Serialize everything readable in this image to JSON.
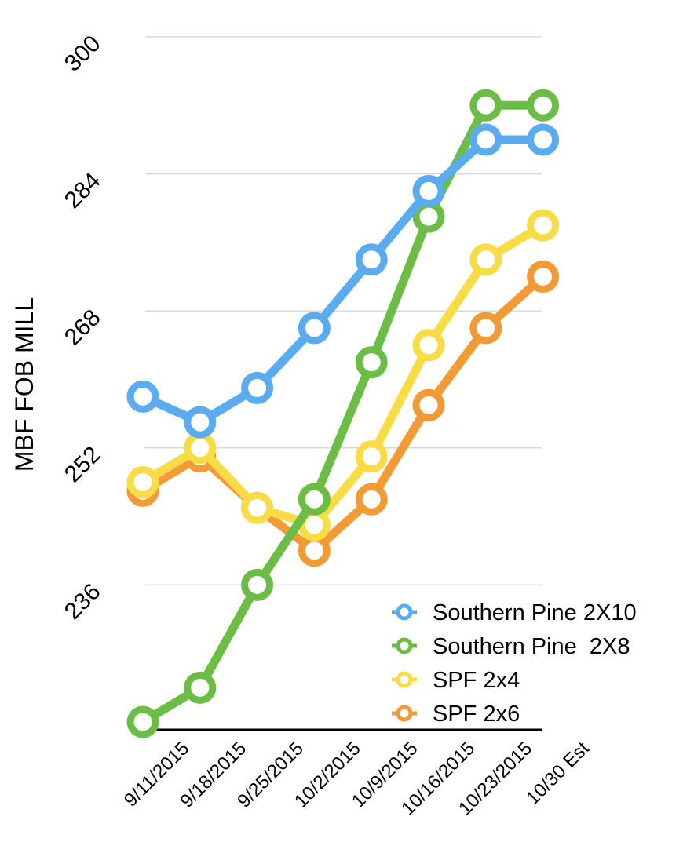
{
  "chart_data": {
    "type": "line",
    "title": "",
    "xlabel": "",
    "ylabel": "MBF FOB MILL",
    "ylim": [
      220,
      300
    ],
    "y_ticks": [
      "236",
      "252",
      "268",
      "284",
      "300"
    ],
    "categories": [
      "9/11/2015",
      "9/18/2015",
      "9/25/2015",
      "10/2/2015",
      "10/9/2015",
      "10/16/2015",
      "10/23/2015",
      "10/30 Est"
    ],
    "grid": true,
    "legend_position": "bottom-right",
    "series": [
      {
        "name": "Southern Pine 2X10",
        "color": "#5aabf0",
        "values": [
          258,
          255,
          259,
          266,
          274,
          282,
          288,
          288
        ]
      },
      {
        "name": "Southern Pine  2X8",
        "color": "#6cbd45",
        "values": [
          220,
          224,
          236,
          246,
          262,
          279,
          292,
          292
        ]
      },
      {
        "name": "SPF 2x4",
        "color": "#f8dc45",
        "values": [
          248,
          252,
          245,
          243,
          251,
          264,
          274,
          278
        ]
      },
      {
        "name": "SPF 2x6",
        "color": "#f29a36",
        "values": [
          247,
          251,
          245,
          240,
          246,
          257,
          266,
          272
        ]
      }
    ]
  }
}
